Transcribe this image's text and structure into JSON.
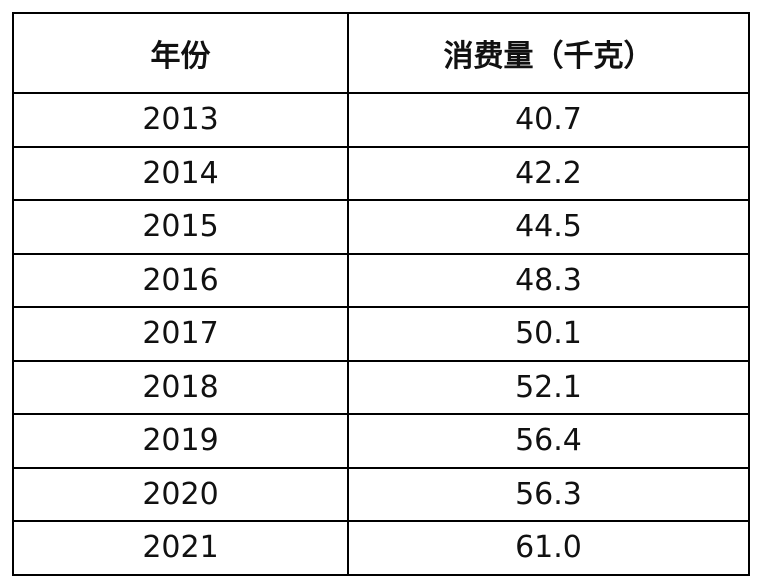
{
  "table": {
    "header": [
      "年份",
      "消费量（千克）"
    ],
    "rows": [
      [
        "2013",
        "40.7"
      ],
      [
        "2014",
        "42.2"
      ],
      [
        "2015",
        "44.5"
      ],
      [
        "2016",
        "48.3"
      ],
      [
        "2017",
        "50.1"
      ],
      [
        "2018",
        "52.1"
      ],
      [
        "2019",
        "56.4"
      ],
      [
        "2020",
        "56.3"
      ],
      [
        "2021",
        "61.0"
      ]
    ]
  }
}
